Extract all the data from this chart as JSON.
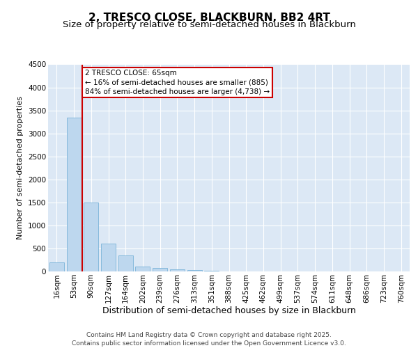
{
  "title": "2, TRESCO CLOSE, BLACKBURN, BB2 4RT",
  "subtitle": "Size of property relative to semi-detached houses in Blackburn",
  "xlabel": "Distribution of semi-detached houses by size in Blackburn",
  "ylabel": "Number of semi-detached properties",
  "categories": [
    "16sqm",
    "53sqm",
    "90sqm",
    "127sqm",
    "164sqm",
    "202sqm",
    "239sqm",
    "276sqm",
    "313sqm",
    "351sqm",
    "388sqm",
    "425sqm",
    "462sqm",
    "499sqm",
    "537sqm",
    "574sqm",
    "611sqm",
    "648sqm",
    "686sqm",
    "723sqm",
    "760sqm"
  ],
  "values": [
    200,
    3350,
    1500,
    600,
    350,
    100,
    75,
    50,
    30,
    20,
    5,
    3,
    2,
    1,
    0,
    0,
    0,
    0,
    0,
    0,
    0
  ],
  "bar_color": "#bdd7ee",
  "bar_edge_color": "#7ab3d9",
  "vline_color": "#cc0000",
  "annotation_text": "2 TRESCO CLOSE: 65sqm\n← 16% of semi-detached houses are smaller (885)\n84% of semi-detached houses are larger (4,738) →",
  "annotation_box_facecolor": "#ffffff",
  "annotation_box_edgecolor": "#cc0000",
  "ylim": [
    0,
    4500
  ],
  "yticks": [
    0,
    500,
    1000,
    1500,
    2000,
    2500,
    3000,
    3500,
    4000,
    4500
  ],
  "background_color": "#dce8f5",
  "grid_color": "#ffffff",
  "footer_text": "Contains HM Land Registry data © Crown copyright and database right 2025.\nContains public sector information licensed under the Open Government Licence v3.0.",
  "title_fontsize": 11,
  "subtitle_fontsize": 9.5,
  "xlabel_fontsize": 9,
  "ylabel_fontsize": 8,
  "tick_fontsize": 7.5,
  "annotation_fontsize": 7.5,
  "footer_fontsize": 6.5
}
